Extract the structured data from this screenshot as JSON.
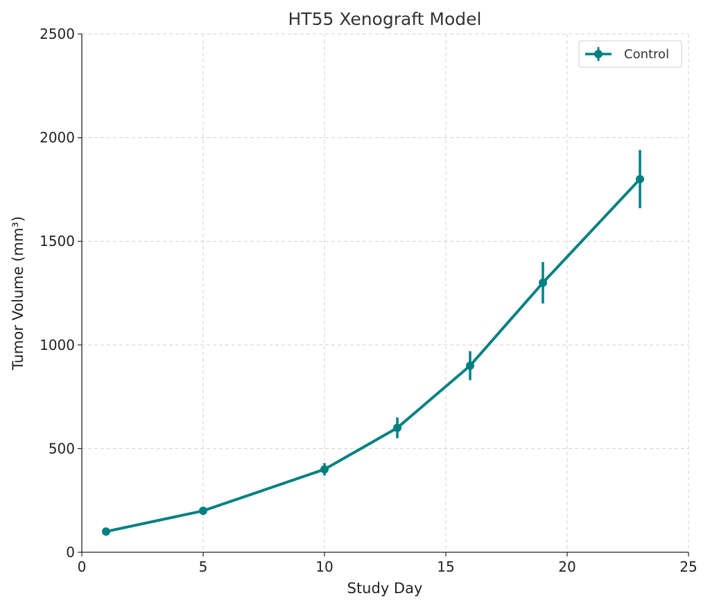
{
  "chart_data": {
    "type": "line",
    "title": "HT55 Xenograft Model",
    "xlabel": "Study Day",
    "ylabel": "Tumor Volume (mm³)",
    "xlim": [
      0,
      25
    ],
    "ylim": [
      0,
      2500
    ],
    "xticks": [
      "0",
      "5",
      "10",
      "15",
      "20",
      "25"
    ],
    "yticks": [
      "0",
      "500",
      "1000",
      "1500",
      "2000",
      "2500"
    ],
    "grid": true,
    "legend_position": "top-right",
    "series": [
      {
        "name": "Control",
        "color": "#008080",
        "x": [
          1,
          5,
          10,
          13,
          16,
          19,
          23
        ],
        "y": [
          100,
          200,
          400,
          600,
          900,
          1300,
          1800
        ],
        "error": [
          10,
          20,
          30,
          50,
          70,
          100,
          140
        ]
      }
    ]
  }
}
